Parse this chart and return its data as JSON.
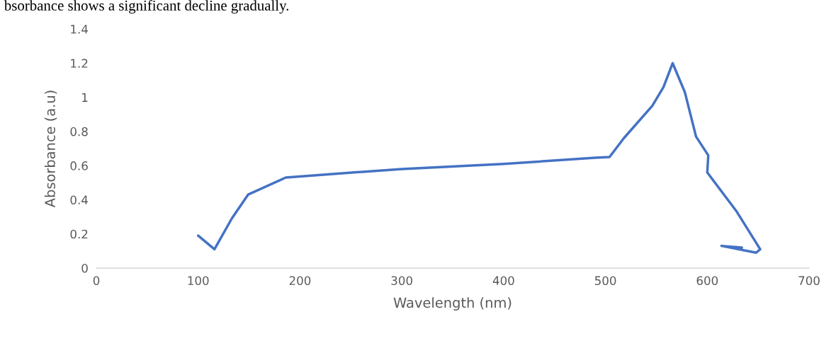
{
  "chart_data": {
    "type": "line",
    "xlabel": "Wavelength (nm)",
    "ylabel": "Absorbance (a.u)",
    "annotations": [
      "bsorbance shows a significant decline gradually."
    ],
    "series": [
      {
        "color": "#4472c4",
        "x": [
          100,
          116,
          133,
          149,
          186,
          253,
          300,
          400,
          490,
          504,
          518,
          546,
          557,
          566,
          578,
          589,
          601,
          600,
          629,
          652,
          648,
          614,
          634
        ],
        "values": [
          0.19,
          0.11,
          0.29,
          0.43,
          0.53,
          0.56,
          0.58,
          0.61,
          0.646,
          0.65,
          0.76,
          0.95,
          1.06,
          1.2,
          1.03,
          0.77,
          0.66,
          0.56,
          0.33,
          0.11,
          0.09,
          0.13,
          0.12
        ]
      }
    ],
    "xlim": [
      0,
      700
    ],
    "xticks": [
      0,
      100,
      200,
      300,
      400,
      500,
      600,
      700
    ],
    "ylim": [
      0,
      1.4
    ],
    "yticks": [
      {
        "value": 0,
        "label": "0"
      },
      {
        "value": 0.2,
        "label": "0.2"
      },
      {
        "value": 0.4,
        "label": "0.4"
      },
      {
        "value": 0.6,
        "label": "0.6"
      },
      {
        "value": 0.8,
        "label": "0.8"
      },
      {
        "value": 1,
        "label": "1"
      },
      {
        "value": 1.2,
        "label": "1.2"
      },
      {
        "value": 1.4,
        "label": "1.4"
      }
    ],
    "grid": false,
    "marker": "none",
    "line_style": "solid"
  }
}
